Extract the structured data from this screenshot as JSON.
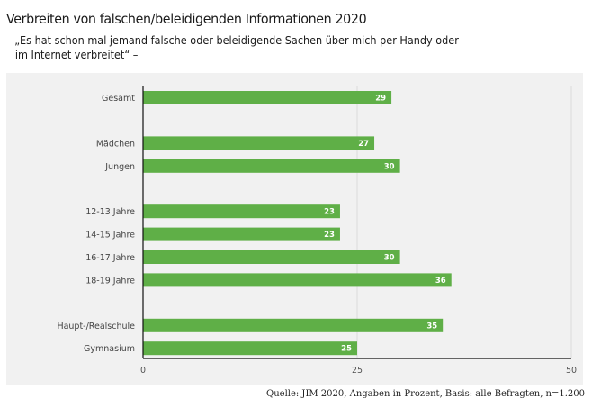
{
  "chart_data": {
    "type": "bar",
    "orientation": "horizontal",
    "title": "Verbreiten von falschen/beleidigenden Informationen 2020",
    "subtitle_line1": "– „Es hat schon mal jemand falsche oder beleidigende Sachen über mich per Handy oder",
    "subtitle_line2": "im Internet verbreitet“ –",
    "categories": [
      "Gesamt",
      "Mädchen",
      "Jungen",
      "12-13 Jahre",
      "14-15 Jahre",
      "16-17 Jahre",
      "18-19 Jahre",
      "Haupt-/Realschule",
      "Gymnasium"
    ],
    "groups": [
      [
        0
      ],
      [
        1,
        2
      ],
      [
        3,
        4,
        5,
        6
      ],
      [
        7,
        8
      ]
    ],
    "values": [
      29,
      27,
      30,
      23,
      23,
      30,
      36,
      35,
      25
    ],
    "xlabel": "",
    "ylabel": "",
    "xlim": [
      0,
      50
    ],
    "xticks": [
      0,
      25,
      50
    ],
    "grid": true,
    "bar_color": "#5faf47",
    "source": "Quelle: JIM 2020, Angaben in Prozent, Basis: alle Befragten, n=1.200"
  }
}
